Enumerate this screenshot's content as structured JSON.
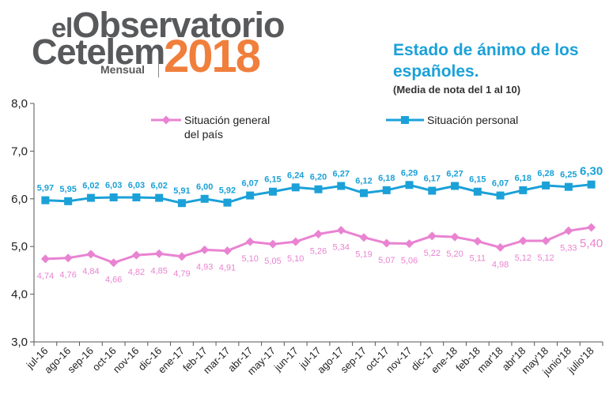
{
  "logo": {
    "prefix": "el",
    "name": "Observatorio",
    "brand": "Cetelem",
    "edition": "Mensual",
    "year": "2018"
  },
  "chart_data": {
    "type": "line",
    "title": "Estado de ánimo de los españoles.",
    "subtitle": "(Media de nota del 1 al 10)",
    "categories": [
      "jul-16",
      "ago-16",
      "sep-16",
      "oct-16",
      "nov-16",
      "dic-16",
      "ene-17",
      "feb-17",
      "mar-17",
      "abr-17",
      "may-17",
      "jun-17",
      "jul-17",
      "ago-17",
      "sep-17",
      "oct-17",
      "nov-17",
      "dic-17",
      "ene-18",
      "feb-18",
      "mar'18",
      "abr'18",
      "may'18",
      "junio'18",
      "julio'18"
    ],
    "series": [
      {
        "name": "Situación general del país",
        "color": "#e983d1",
        "marker": "diamond",
        "values": [
          4.74,
          4.76,
          4.84,
          4.66,
          4.82,
          4.85,
          4.79,
          4.93,
          4.91,
          5.1,
          5.05,
          5.1,
          5.26,
          5.34,
          5.19,
          5.07,
          5.06,
          5.22,
          5.2,
          5.11,
          4.98,
          5.12,
          5.12,
          5.33,
          5.4
        ],
        "labels": [
          "4,74",
          "4,76",
          "4,84",
          "4,66",
          "4,82",
          "4,85",
          "4,79",
          "4,93",
          "4,91",
          "5,10",
          "5,05",
          "5,10",
          "5,26",
          "5,34",
          "5,19",
          "5,07",
          "5,06",
          "5,22",
          "5,20",
          "5,11",
          "4,98",
          "5,12",
          "5,12",
          "5,33",
          "5,40"
        ]
      },
      {
        "name": "Situación personal",
        "color": "#1ba1d8",
        "marker": "square",
        "values": [
          5.97,
          5.95,
          6.02,
          6.03,
          6.03,
          6.02,
          5.91,
          6.0,
          5.92,
          6.07,
          6.15,
          6.24,
          6.2,
          6.27,
          6.12,
          6.18,
          6.29,
          6.17,
          6.27,
          6.15,
          6.07,
          6.18,
          6.28,
          6.25,
          6.3
        ],
        "labels": [
          "5,97",
          "5,95",
          "6,02",
          "6,03",
          "6,03",
          "6,02",
          "5,91",
          "6,00",
          "5,92",
          "6,07",
          "6,15",
          "6,24",
          "6,20",
          "6,27",
          "6,12",
          "6,18",
          "6,29",
          "6,17",
          "6,27",
          "6,15",
          "6,07",
          "6,18",
          "6,28",
          "6,25",
          "6,30"
        ]
      }
    ],
    "legend_labels": {
      "general_line1": "Situación general",
      "general_line2": "del país",
      "personal": "Situación personal"
    },
    "ylim": [
      3.0,
      8.0
    ],
    "yticks": [
      "3,0",
      "4,0",
      "5,0",
      "6,0",
      "7,0",
      "8,0"
    ],
    "grid": false,
    "legend": "top"
  }
}
